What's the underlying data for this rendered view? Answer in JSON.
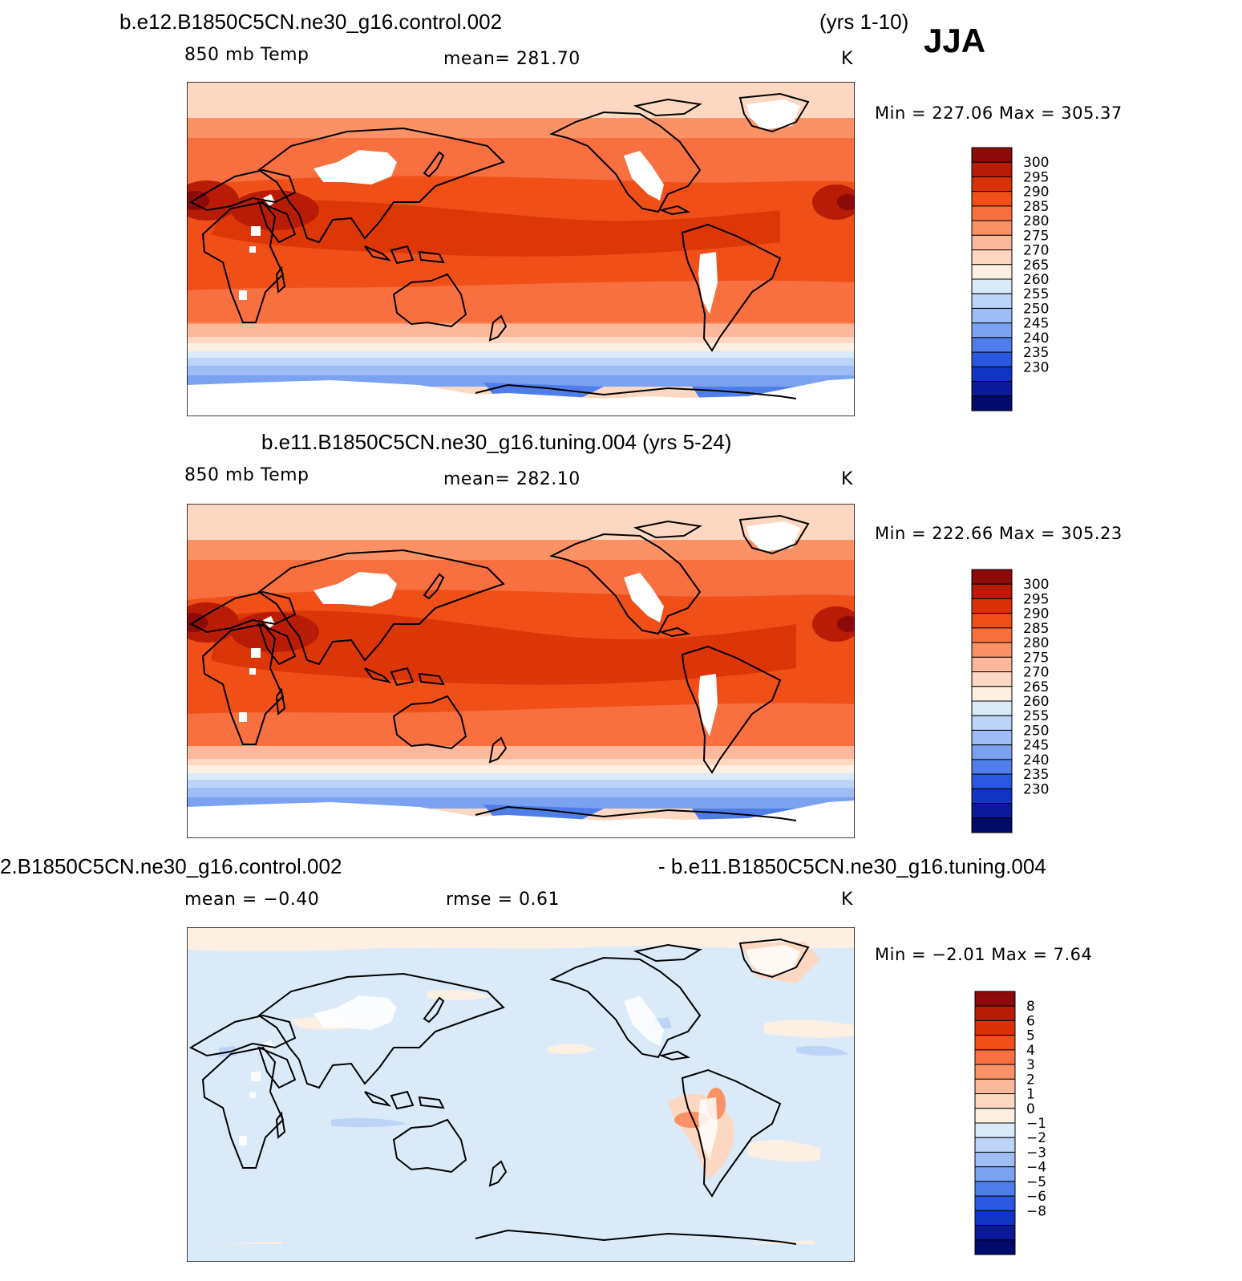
{
  "season": "JJA",
  "panels": [
    {
      "title_left": "b.e12.B1850C5CN.ne30_g16.control.002",
      "title_right": "(yrs 1-10)",
      "variable_label": "850 mb Temp",
      "stat_label": "mean=  281.70",
      "units": "K",
      "min_max_label": "Min  =  227.06  Max  =  305.37",
      "colorbar": {
        "colors": [
          "#8c0a0a",
          "#b81c06",
          "#d93206",
          "#f05018",
          "#f87040",
          "#fb9266",
          "#fcb89a",
          "#fcd8c2",
          "#fdf0e2",
          "#dbeaf8",
          "#bcd4f8",
          "#9ebdf5",
          "#7aa2f0",
          "#4f7eeb",
          "#2a58e0",
          "#1234c4",
          "#0a1a9a",
          "#020a6a"
        ],
        "labels": [
          "300",
          "295",
          "290",
          "285",
          "280",
          "275",
          "270",
          "265",
          "260",
          "255",
          "250",
          "245",
          "240",
          "235",
          "230"
        ]
      }
    },
    {
      "title_center": "b.e11.B1850C5CN.ne30_g16.tuning.004 (yrs 5-24)",
      "variable_label": "850 mb Temp",
      "stat_label": "mean=  282.10",
      "units": "K",
      "min_max_label": "Min  =  222.66  Max  =  305.23",
      "colorbar": {
        "colors": [
          "#8c0a0a",
          "#b81c06",
          "#d93206",
          "#f05018",
          "#f87040",
          "#fb9266",
          "#fcb89a",
          "#fcd8c2",
          "#fdf0e2",
          "#dbeaf8",
          "#bcd4f8",
          "#9ebdf5",
          "#7aa2f0",
          "#4f7eeb",
          "#2a58e0",
          "#1234c4",
          "#0a1a9a",
          "#020a6a"
        ],
        "labels": [
          "300",
          "295",
          "290",
          "285",
          "280",
          "275",
          "270",
          "265",
          "260",
          "255",
          "250",
          "245",
          "240",
          "235",
          "230"
        ]
      }
    },
    {
      "title_left": "2.B1850C5CN.ne30_g16.control.002",
      "title_right": "- b.e11.B1850C5CN.ne30_g16.tuning.004",
      "stat_label": "mean  =   −0.40",
      "rmse_label": "rmse  =     0.61",
      "units": "K",
      "min_max_label": "Min  =   −2.01  Max  =     7.64",
      "colorbar": {
        "colors": [
          "#8c0a0a",
          "#b81c06",
          "#d93206",
          "#f05018",
          "#f87040",
          "#fb9266",
          "#fcb89a",
          "#fcd8c2",
          "#fdf0e2",
          "#dbeaf8",
          "#bcd4f8",
          "#9ebdf5",
          "#7aa2f0",
          "#4f7eeb",
          "#2a58e0",
          "#1234c4",
          "#0a1a9a",
          "#020a6a"
        ],
        "labels": [
          "8",
          "6",
          "5",
          "4",
          "3",
          "2",
          "1",
          "0",
          "−1",
          "−2",
          "−3",
          "−4",
          "−5",
          "−6",
          "−8"
        ]
      }
    }
  ]
}
